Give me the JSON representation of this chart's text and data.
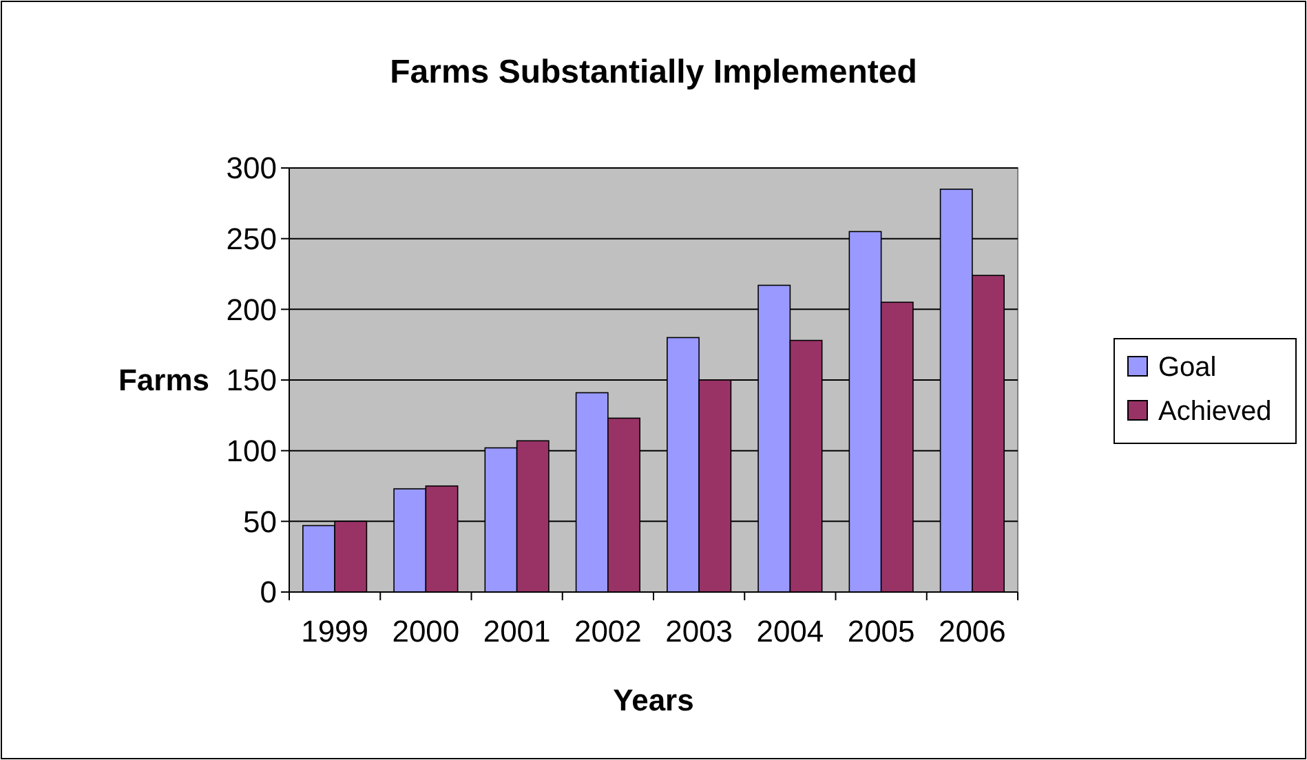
{
  "chart_data": {
    "type": "bar",
    "title": "Farms Substantially Implemented",
    "xlabel": "Years",
    "ylabel": "Farms",
    "categories": [
      "1999",
      "2000",
      "2001",
      "2002",
      "2003",
      "2004",
      "2005",
      "2006"
    ],
    "series": [
      {
        "name": "Goal",
        "color": "#9999ff",
        "values": [
          47,
          73,
          102,
          141,
          180,
          217,
          255,
          285
        ]
      },
      {
        "name": "Achieved",
        "color": "#993366",
        "values": [
          50,
          75,
          107,
          123,
          150,
          178,
          205,
          224
        ]
      }
    ],
    "ylim": [
      0,
      300
    ],
    "yticks": [
      0,
      50,
      100,
      150,
      200,
      250,
      300
    ],
    "grid": "y",
    "legend": "right"
  }
}
